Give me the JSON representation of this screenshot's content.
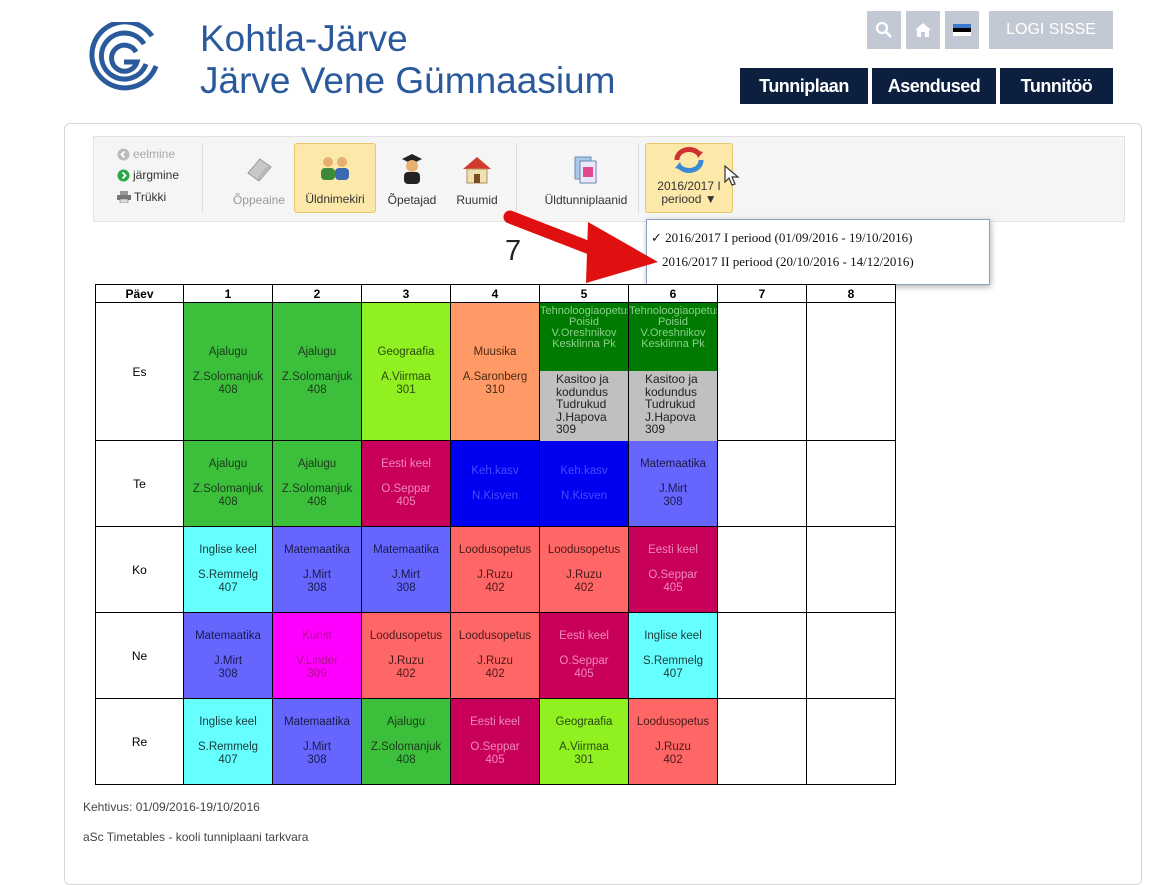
{
  "school": {
    "line1": "Kohtla-Järve",
    "line2": "Järve Vene Gümnaasium"
  },
  "top_controls": {
    "login_label": "LOGI SISSE"
  },
  "nav": [
    "Tunniplaan",
    "Asendused",
    "Tunnitöö"
  ],
  "toolbar": {
    "prev": "eelmine",
    "next": "järgmine",
    "print": "Trükki",
    "buttons": [
      "Õppeaine",
      "Üldnimekiri",
      "Õpetajad",
      "Ruumid",
      "Üldtunniplaanid"
    ],
    "period_line1": "2016/2017 I",
    "period_line2": "periood ▼"
  },
  "dropdown": {
    "items": [
      {
        "check": "✓",
        "label": "2016/2017 I periood (01/09/2016 - 19/10/2016)"
      },
      {
        "check": "",
        "label": "2016/2017 II periood (20/10/2016 - 14/12/2016)"
      }
    ]
  },
  "class_title": "7",
  "timetable": {
    "day_header": "Päev",
    "periods": [
      "1",
      "2",
      "3",
      "4",
      "5",
      "6",
      "7",
      "8"
    ],
    "days": [
      "Es",
      "Te",
      "Ko",
      "Ne",
      "Re"
    ]
  },
  "colors": {
    "green": "#3cc03c",
    "lime": "#90f020",
    "orange": "#ff9966",
    "darkgreen": "#007a00",
    "gray": "#c0c0c0",
    "crimson": "#c8005a",
    "blue": "#0000f0",
    "periwinkle": "#6666ff",
    "cyan": "#66ffff",
    "magenta": "#ff00ff",
    "salmon": "#ff6666"
  },
  "lessons": [
    [
      {
        "subject": "Ajalugu",
        "teacher": "Z.Solomanjuk",
        "room": "408",
        "color": "#3cc03c",
        "text": "#1a3a1a"
      },
      {
        "subject": "Ajalugu",
        "teacher": "Z.Solomanjuk",
        "room": "408",
        "color": "#3cc03c",
        "text": "#1a3a1a"
      },
      {
        "subject": "Geograafia",
        "teacher": "A.Viirmaa",
        "room": "301",
        "color": "#90f020",
        "text": "#2a4a10"
      },
      {
        "subject": "Muusika",
        "teacher": "A.Saronberg",
        "room": "310",
        "color": "#ff9966",
        "text": "#4a2a10"
      },
      {
        "split": true,
        "top": {
          "lines": [
            "Tehnoloogiaopetus",
            "Poisid",
            "V.Oreshnikov",
            "Kesklinna Pk"
          ],
          "color": "#007a00",
          "text": "#8ad08a"
        },
        "bottom": {
          "lines": [
            "Kasitoo ja",
            "kodundus",
            "Tudrukud",
            "J.Hapova",
            "309"
          ],
          "color": "#c0c0c0",
          "text": "#222"
        }
      },
      {
        "split": true,
        "top": {
          "lines": [
            "Tehnoloogiaopetus",
            "Poisid",
            "V.Oreshnikov",
            "Kesklinna Pk"
          ],
          "color": "#007a00",
          "text": "#8ad08a"
        },
        "bottom": {
          "lines": [
            "Kasitoo ja",
            "kodundus",
            "Tudrukud",
            "J.Hapova",
            "309"
          ],
          "color": "#c0c0c0",
          "text": "#222"
        }
      },
      null,
      null
    ],
    [
      {
        "subject": "Ajalugu",
        "teacher": "Z.Solomanjuk",
        "room": "408",
        "color": "#3cc03c",
        "text": "#1a3a1a"
      },
      {
        "subject": "Ajalugu",
        "teacher": "Z.Solomanjuk",
        "room": "408",
        "color": "#3cc03c",
        "text": "#1a3a1a"
      },
      {
        "subject": "Eesti keel",
        "teacher": "O.Seppar",
        "room": "405",
        "color": "#c8005a",
        "text": "#f08ab8"
      },
      {
        "subject": "Keh.kasv",
        "teacher": "N.Kisven",
        "room": "",
        "color": "#0000f0",
        "text": "#4a4aff"
      },
      {
        "subject": "Keh.kasv",
        "teacher": "N.Kisven",
        "room": "",
        "color": "#0000f0",
        "text": "#4a4aff"
      },
      {
        "subject": "Matemaatika",
        "teacher": "J.Mirt",
        "room": "308",
        "color": "#6666ff",
        "text": "#1a1a4a"
      },
      null,
      null
    ],
    [
      {
        "subject": "Inglise keel",
        "teacher": "S.Remmelg",
        "room": "407",
        "color": "#66ffff",
        "text": "#1a3a3a"
      },
      {
        "subject": "Matemaatika",
        "teacher": "J.Mirt",
        "room": "308",
        "color": "#6666ff",
        "text": "#1a1a4a"
      },
      {
        "subject": "Matemaatika",
        "teacher": "J.Mirt",
        "room": "308",
        "color": "#6666ff",
        "text": "#1a1a4a"
      },
      {
        "subject": "Loodusopetus",
        "teacher": "J.Ruzu",
        "room": "402",
        "color": "#ff6666",
        "text": "#4a1a1a"
      },
      {
        "subject": "Loodusopetus",
        "teacher": "J.Ruzu",
        "room": "402",
        "color": "#ff6666",
        "text": "#4a1a1a"
      },
      {
        "subject": "Eesti keel",
        "teacher": "O.Seppar",
        "room": "405",
        "color": "#c8005a",
        "text": "#f08ab8"
      },
      null,
      null
    ],
    [
      {
        "subject": "Matemaatika",
        "teacher": "J.Mirt",
        "room": "308",
        "color": "#6666ff",
        "text": "#1a1a4a"
      },
      {
        "subject": "Kunst",
        "teacher": "V.Linder",
        "room": "309",
        "color": "#ff00ff",
        "text": "#b0108a"
      },
      {
        "subject": "Loodusopetus",
        "teacher": "J.Ruzu",
        "room": "402",
        "color": "#ff6666",
        "text": "#4a1a1a"
      },
      {
        "subject": "Loodusopetus",
        "teacher": "J.Ruzu",
        "room": "402",
        "color": "#ff6666",
        "text": "#4a1a1a"
      },
      {
        "subject": "Eesti keel",
        "teacher": "O.Seppar",
        "room": "405",
        "color": "#c8005a",
        "text": "#f08ab8"
      },
      {
        "subject": "Inglise keel",
        "teacher": "S.Remmelg",
        "room": "407",
        "color": "#66ffff",
        "text": "#1a3a3a"
      },
      null,
      null
    ],
    [
      {
        "subject": "Inglise keel",
        "teacher": "S.Remmelg",
        "room": "407",
        "color": "#66ffff",
        "text": "#1a3a3a"
      },
      {
        "subject": "Matemaatika",
        "teacher": "J.Mirt",
        "room": "308",
        "color": "#6666ff",
        "text": "#1a1a4a"
      },
      {
        "subject": "Ajalugu",
        "teacher": "Z.Solomanjuk",
        "room": "408",
        "color": "#3cc03c",
        "text": "#1a3a1a"
      },
      {
        "subject": "Eesti keel",
        "teacher": "O.Seppar",
        "room": "405",
        "color": "#c8005a",
        "text": "#f08ab8"
      },
      {
        "subject": "Geograafia",
        "teacher": "A.Viirmaa",
        "room": "301",
        "color": "#90f020",
        "text": "#2a4a10"
      },
      {
        "subject": "Loodusopetus",
        "teacher": "J.Ruzu",
        "room": "402",
        "color": "#ff6666",
        "text": "#4a1a1a"
      },
      null,
      null
    ]
  ],
  "validity": "Kehtivus: 01/09/2016-19/10/2016",
  "footer": "aSc Timetables - kooli tunniplaani tarkvara"
}
